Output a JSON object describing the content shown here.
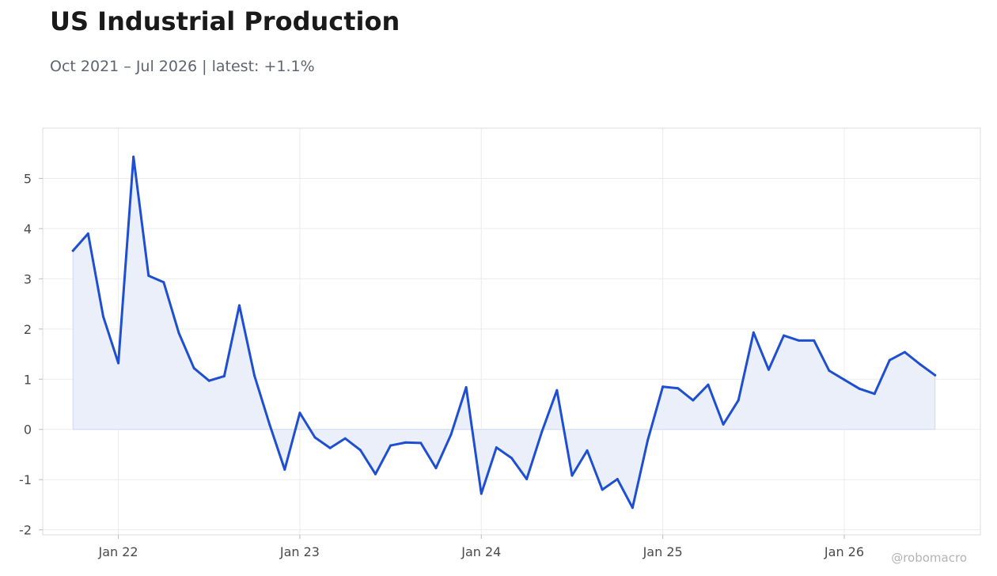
{
  "title": "US Industrial Production",
  "subtitle": "Oct 2021 – Jul 2026 | latest: +1.1%",
  "watermark": "@robomacro",
  "colors": {
    "line": "#1f4fd1",
    "fill": "#eaeffa",
    "grid": "#ececec",
    "frame": "#dcdcdc"
  },
  "chart_data": {
    "type": "area",
    "title": "US Industrial Production",
    "xlabel": "",
    "ylabel": "",
    "x": [
      "2021-10",
      "2021-11",
      "2021-12",
      "2022-01",
      "2022-02",
      "2022-03",
      "2022-04",
      "2022-05",
      "2022-06",
      "2022-07",
      "2022-08",
      "2022-09",
      "2022-10",
      "2022-11",
      "2022-12",
      "2023-01",
      "2023-02",
      "2023-03",
      "2023-04",
      "2023-05",
      "2023-06",
      "2023-07",
      "2023-08",
      "2023-09",
      "2023-10",
      "2023-11",
      "2023-12",
      "2024-01",
      "2024-02",
      "2024-03",
      "2024-04",
      "2024-05",
      "2024-06",
      "2024-07",
      "2024-08",
      "2024-09",
      "2024-10",
      "2024-11",
      "2024-12",
      "2025-01",
      "2025-02",
      "2025-03",
      "2025-04",
      "2025-05",
      "2025-06",
      "2025-07",
      "2025-08",
      "2025-09",
      "2025-10",
      "2025-11",
      "2025-12",
      "2026-01",
      "2026-02",
      "2026-03",
      "2026-04",
      "2026-05",
      "2026-06",
      "2026-07"
    ],
    "series": [
      {
        "values": [
          3.56,
          3.9,
          2.25,
          1.32,
          5.43,
          3.06,
          2.93,
          1.92,
          1.22,
          0.97,
          1.06,
          2.47,
          1.07,
          0.1,
          -0.8,
          0.33,
          -0.16,
          -0.37,
          -0.18,
          -0.41,
          -0.89,
          -0.32,
          -0.26,
          -0.27,
          -0.77,
          -0.1,
          0.84,
          -1.28,
          -0.36,
          -0.57,
          -0.99,
          -0.05,
          0.78,
          -0.92,
          -0.42,
          -1.2,
          -0.99,
          -1.56,
          -0.22,
          0.85,
          0.82,
          0.58,
          0.89,
          0.1,
          0.58,
          1.93,
          1.19,
          1.87,
          1.77,
          1.77,
          1.17,
          0.99,
          0.81,
          0.71,
          1.38,
          1.54,
          1.3,
          1.08
        ]
      }
    ],
    "xticks": [
      "Jan 22",
      "Jan 23",
      "Jan 24",
      "Jan 25",
      "Jan 26"
    ],
    "xtick_dates": [
      "2022-01",
      "2023-01",
      "2024-01",
      "2025-01",
      "2026-01"
    ],
    "yticks": [
      -2,
      -1,
      0,
      1,
      2,
      3,
      4,
      5
    ],
    "ylim": [
      -2.1,
      6.0
    ],
    "xlim": [
      "2021-08",
      "2026-10"
    ],
    "grid": true,
    "legend": "none"
  }
}
